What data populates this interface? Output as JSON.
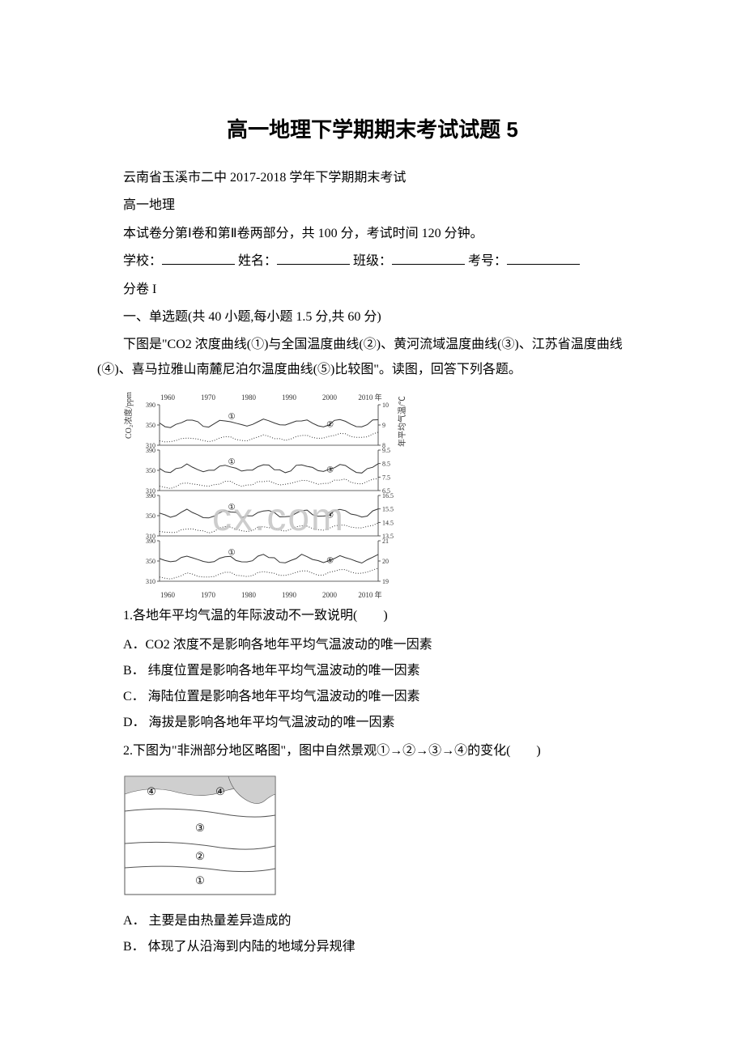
{
  "title": "高一地理下学期期末考试试题 5",
  "subtitle1": "云南省玉溪市二中 2017-2018 学年下学期期末考试",
  "subtitle2": "高一地理",
  "intro": "本试卷分第Ⅰ卷和第Ⅱ卷两部分，共 100 分，考试时间 120 分钟。",
  "formline": {
    "school": "学校：",
    "name": "姓名：",
    "class": "班级：",
    "id": "考号："
  },
  "sectionLabel": "分卷 I",
  "partHeading": "一、单选题(共 40 小题,每小题 1.5 分,共 60 分)",
  "q1_intro": "下图是\"CO2 浓度曲线(①)与全国温度曲线(②)、黄河流域温度曲线(③)、江苏省温度曲线(④)、喜马拉雅山南麓尼泊尔温度曲线(⑤)比较图\"。读图，回答下列各题。",
  "chart": {
    "years": [
      "1960",
      "1970",
      "1980",
      "1990",
      "2000",
      "2010 年"
    ],
    "yearsBottom": [
      "1960",
      "1970",
      "1980",
      "1990",
      "2000",
      "2010 年"
    ],
    "leftTicks": [
      "390",
      "350",
      "310"
    ],
    "leftLabel": "CO₂浓度/ppm",
    "rightLabel": "年平均气温/℃",
    "panels": [
      {
        "right": [
          "10",
          "9",
          "8"
        ],
        "pair": "②",
        "circ": "①"
      },
      {
        "right": [
          "9.5",
          "8.5",
          "7.5",
          "6.5"
        ],
        "pair": "③",
        "circ": "①"
      },
      {
        "right": [
          "16.5",
          "15.5",
          "14.5",
          "13.5"
        ],
        "pair": "④",
        "circ": "①"
      },
      {
        "right": [
          "21",
          "20",
          "19"
        ],
        "pair": "⑤",
        "circ": "①"
      }
    ]
  },
  "q1": {
    "stem": "1.各地年平均气温的年际波动不一致说明(　　)",
    "A": "A．CO2 浓度不是影响各地年平均气温波动的唯一因素",
    "B": "B． 纬度位置是影响各地年平均气温波动的唯一因素",
    "C": "C． 海陆位置是影响各地年平均气温波动的唯一因素",
    "D": "D． 海拔是影响各地年平均气温波动的唯一因素"
  },
  "q2": {
    "stem": "2.下图为\"非洲部分地区略图\"，图中自然景观①→②→③→④的变化(　　)",
    "mapLabels": [
      "①",
      "②",
      "③",
      "④"
    ],
    "A": "A． 主要是由热量差异造成的",
    "B": "B． 体现了从沿海到内陆的地域分异规律"
  }
}
